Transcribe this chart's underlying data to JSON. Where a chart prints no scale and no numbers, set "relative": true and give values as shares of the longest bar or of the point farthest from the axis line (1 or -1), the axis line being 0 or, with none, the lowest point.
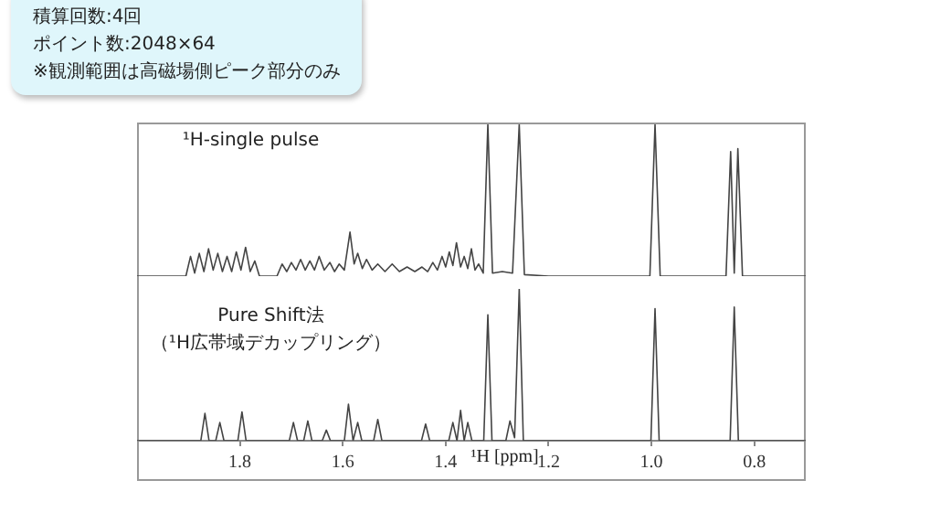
{
  "chart_data": [
    {
      "type": "line",
      "xlim": [
        2.0,
        0.7
      ],
      "relative": true,
      "tick_labels": false,
      "legend": false,
      "grid": false,
      "annotations": [
        "積算回数:4回",
        "ポイント数:2048×64",
        "※観測範囲は高磁場側ピーク部分のみ"
      ],
      "series": [
        {
          "name": "¹H-single pulse",
          "color": "#444444",
          "x": [
            2.0,
            1.905,
            1.896,
            1.888,
            1.879,
            1.87,
            1.861,
            1.852,
            1.843,
            1.834,
            1.825,
            1.816,
            1.807,
            1.798,
            1.789,
            1.78,
            1.771,
            1.762,
            1.728,
            1.718,
            1.709,
            1.7,
            1.691,
            1.682,
            1.673,
            1.664,
            1.655,
            1.646,
            1.636,
            1.625,
            1.616,
            1.607,
            1.597,
            1.586,
            1.578,
            1.571,
            1.562,
            1.554,
            1.543,
            1.532,
            1.518,
            1.504,
            1.49,
            1.475,
            1.46,
            1.446,
            1.435,
            1.425,
            1.416,
            1.407,
            1.4,
            1.393,
            1.386,
            1.379,
            1.371,
            1.364,
            1.357,
            1.35,
            1.343,
            1.336,
            1.327,
            1.318,
            1.309,
            1.29,
            1.27,
            1.257,
            1.247,
            1.2,
            1.003,
            0.993,
            0.983,
            0.855,
            0.846,
            0.839,
            0.832,
            0.823,
            0.7
          ],
          "values": [
            0,
            0,
            0.13,
            0.02,
            0.15,
            0.03,
            0.18,
            0.04,
            0.15,
            0.03,
            0.13,
            0.03,
            0.16,
            0.04,
            0.19,
            0.03,
            0.1,
            0,
            0,
            0.08,
            0.03,
            0.09,
            0.04,
            0.11,
            0.04,
            0.1,
            0.04,
            0.13,
            0.04,
            0.09,
            0.03,
            0.08,
            0.04,
            0.29,
            0.08,
            0.15,
            0.05,
            0.11,
            0.04,
            0.08,
            0.03,
            0.08,
            0.03,
            0.06,
            0.03,
            0.06,
            0.03,
            0.09,
            0.04,
            0.13,
            0.06,
            0.16,
            0.07,
            0.22,
            0.06,
            0.13,
            0.05,
            0.18,
            0.04,
            0.08,
            0.02,
            1,
            0.02,
            0.03,
            0.02,
            1,
            0.01,
            0,
            0,
            1,
            0,
            0,
            0.82,
            0.02,
            0.84,
            0,
            0
          ]
        }
      ]
    },
    {
      "type": "line",
      "xlim": [
        2.0,
        0.7
      ],
      "xticks": [
        1.8,
        1.6,
        1.4,
        1.2,
        {
          "value": 1.0,
          "label": "1.0"
        },
        0.8
      ],
      "xlabel": "¹H [ppm]",
      "relative": true,
      "legend": false,
      "grid": false,
      "series": [
        {
          "name": "Pure Shift法（¹H広帯域デカップリング）",
          "color": "#444444",
          "x": [
            2.0,
            1.876,
            1.868,
            1.86,
            1.847,
            1.839,
            1.831,
            1.804,
            1.796,
            1.788,
            1.704,
            1.696,
            1.688,
            1.676,
            1.668,
            1.66,
            1.64,
            1.632,
            1.624,
            1.597,
            1.589,
            1.58,
            1.571,
            1.563,
            1.54,
            1.532,
            1.524,
            1.447,
            1.439,
            1.431,
            1.394,
            1.386,
            1.378,
            1.371,
            1.364,
            1.357,
            1.349,
            1.326,
            1.318,
            1.31,
            1.283,
            1.275,
            1.266,
            1.257,
            1.249,
            1.001,
            0.993,
            0.985,
            0.847,
            0.839,
            0.831,
            0.7
          ],
          "values": [
            0,
            0,
            0.18,
            0,
            0,
            0.12,
            0,
            0,
            0.19,
            0,
            0,
            0.12,
            0,
            0,
            0.13,
            0,
            0,
            0.07,
            0,
            0,
            0.24,
            0,
            0.12,
            0,
            0,
            0.14,
            0,
            0,
            0.11,
            0,
            0,
            0.12,
            0,
            0.2,
            0,
            0.12,
            0,
            0,
            0.83,
            0,
            0,
            0.13,
            0.02,
            1,
            0,
            0,
            0.87,
            0,
            0,
            0.88,
            0,
            0
          ]
        }
      ]
    }
  ]
}
